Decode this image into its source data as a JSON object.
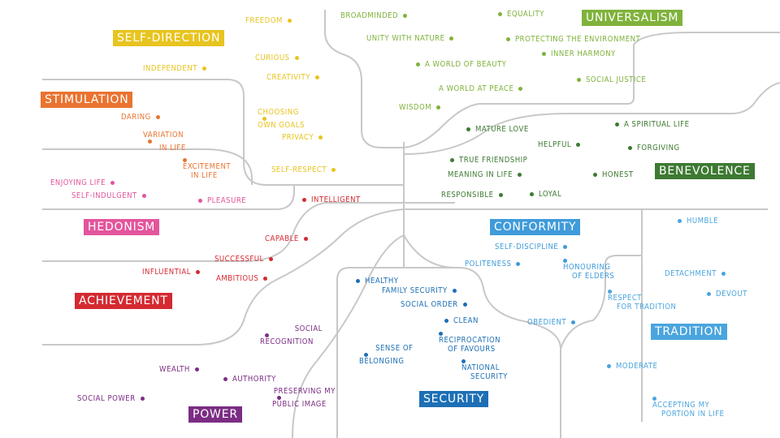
{
  "colors": {
    "self_direction": "#e8c41f",
    "stimulation": "#ea7330",
    "hedonism": "#e3559c",
    "achievement": "#d42a32",
    "power": "#7b2d84",
    "security": "#1d6fb5",
    "conformity": "#3f9bd9",
    "tradition": "#4aa5de",
    "benevolence": "#3d7a32",
    "universalism": "#7fb23b",
    "line": "#c8c8c8"
  },
  "categories": {
    "self_direction": "SELF-DIRECTION",
    "stimulation": "STIMULATION",
    "hedonism": "HEDONISM",
    "achievement": "ACHIEVEMENT",
    "power": "POWER",
    "security": "SECURITY",
    "conformity": "CONFORMITY",
    "tradition": "TRADITION",
    "benevolence": "BENEVOLENCE",
    "universalism": "UNIVERSALISM"
  },
  "values": {
    "freedom": "FREEDOM",
    "independent": "INDEPENDENT",
    "curious": "CURIOUS",
    "creativity": "CREATIVITY",
    "choosing_goals": [
      "CHOOSING",
      "OWN GOALS"
    ],
    "privacy": "PRIVACY",
    "self_respect": "SELF-RESPECT",
    "daring": "DARING",
    "variation": [
      "VARIATION",
      "IN LIFE"
    ],
    "excitement": [
      "EXCITEMENT",
      "IN LIFE"
    ],
    "enjoying": "ENJOYING LIFE",
    "self_indulgent": "SELF-INDULGENT",
    "pleasure": "PLEASURE",
    "intelligent": "INTELLIGENT",
    "capable": "CAPABLE",
    "successful": "SUCCESSFUL",
    "influential": "INFLUENTIAL",
    "ambitious": "AMBITIOUS",
    "social_recognition": [
      "SOCIAL",
      "RECOGNITION"
    ],
    "wealth": "WEALTH",
    "authority": "AUTHORITY",
    "social_power": "SOCIAL POWER",
    "preserving_image": [
      "PRESERVING MY",
      "PUBLIC IMAGE"
    ],
    "healthy": "HEALTHY",
    "family_security": "FAMILY SECURITY",
    "social_order": "SOCIAL ORDER",
    "clean": "CLEAN",
    "reciprocation": [
      "RECIPROCATION",
      "OF FAVOURS"
    ],
    "belonging": [
      "SENSE OF",
      "BELONGING"
    ],
    "national_security": [
      "NATIONAL",
      "SECURITY"
    ],
    "self_discipline": "SELF-DISCIPLINE",
    "politeness": "POLITENESS",
    "honouring": [
      "HONOURING",
      "OF ELDERS"
    ],
    "obedient": "OBEDIENT",
    "humble": "HUMBLE",
    "detachment": "DETACHMENT",
    "devout": "DEVOUT",
    "respect_tradition": [
      "RESPECT",
      "FOR TRADITION"
    ],
    "moderate": "MODERATE",
    "accepting": [
      "ACCEPTING MY",
      "PORTION IN LIFE"
    ],
    "broadminded": "BROADMINDED",
    "equality": "EQUALITY",
    "unity_nature": "UNITY WITH NATURE",
    "protecting_env": "PROTECTING THE ENVIRONMENT",
    "inner_harmony": "INNER HARMONY",
    "world_beauty": "A WORLD OF BEAUTY",
    "social_justice": "SOCIAL JUSTICE",
    "world_peace": "A WORLD AT PEACE",
    "wisdom": "WISDOM",
    "mature_love": "MATURE LOVE",
    "spiritual_life": "A SPIRITUAL LIFE",
    "helpful": "HELPFUL",
    "forgiving": "FORGIVING",
    "true_friendship": "TRUE FRIENDSHIP",
    "meaning_life": "MEANING IN LIFE",
    "honest": "HONEST",
    "responsible": "RESPONSIBLE",
    "loyal": "LOYAL"
  }
}
